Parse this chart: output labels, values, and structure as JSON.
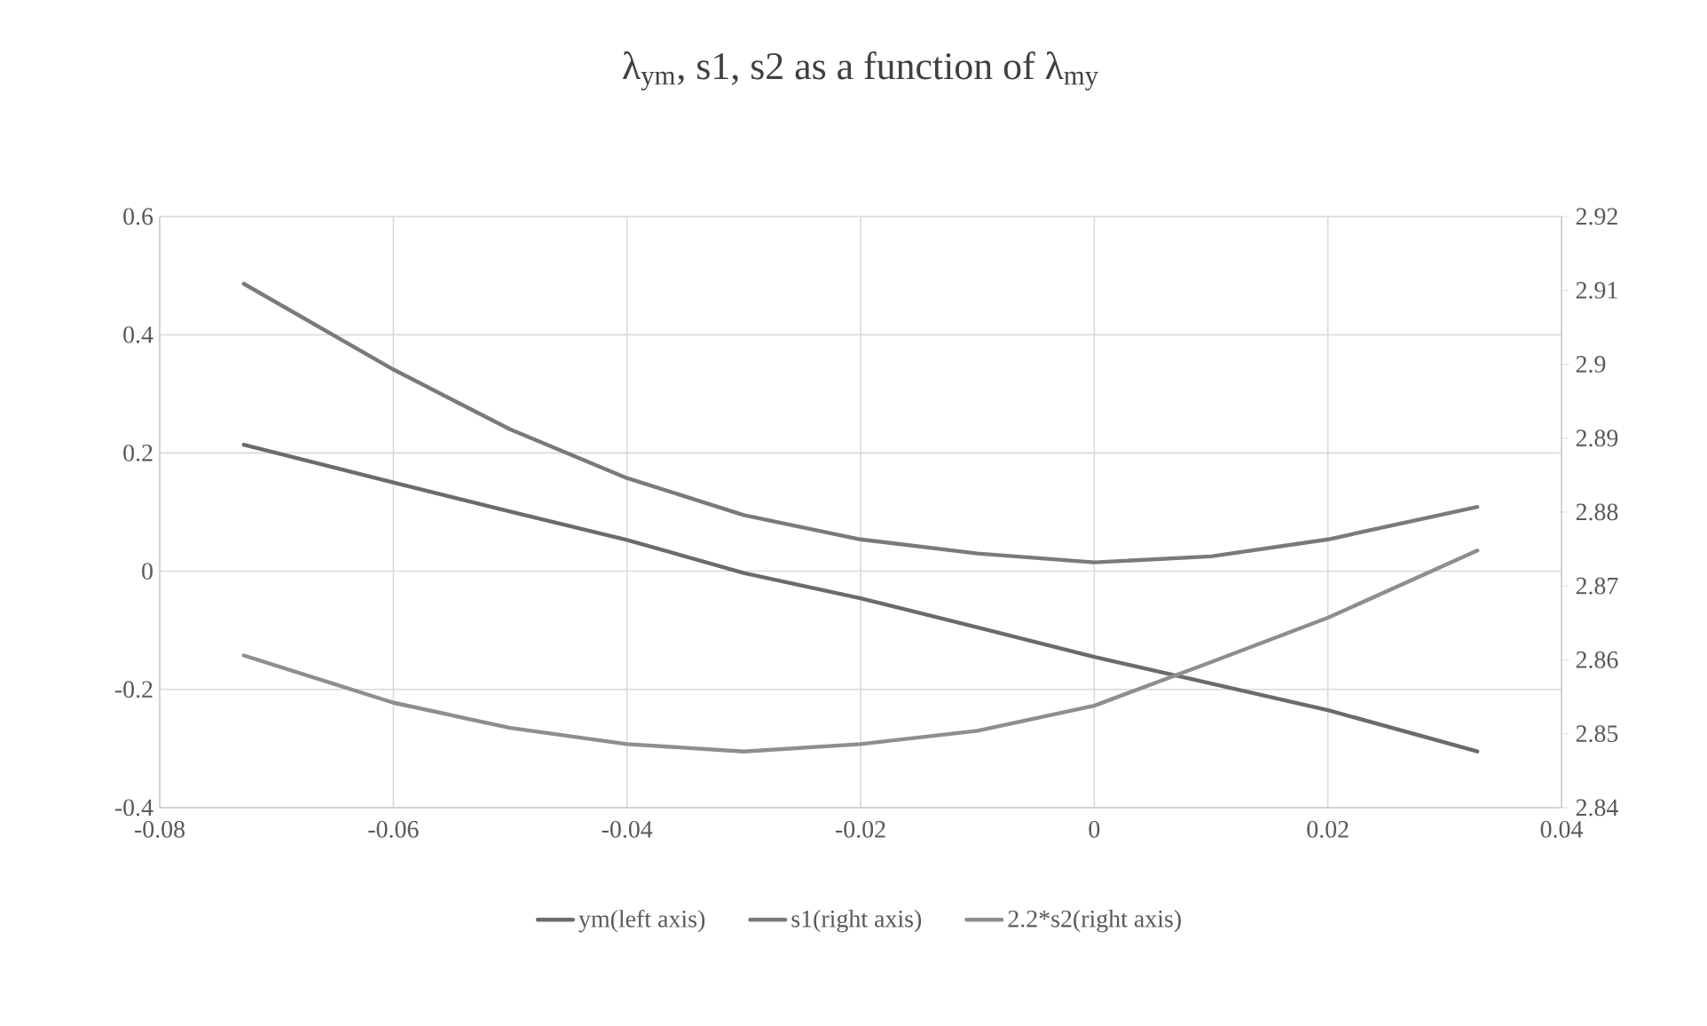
{
  "chart_data": {
    "type": "line",
    "title": "λ$_{ym}$, s1, s2 as a function of λ$_{my}$",
    "x": [
      -0.0728,
      -0.06,
      -0.05,
      -0.04,
      -0.03,
      -0.02,
      -0.01,
      0,
      0.01,
      0.02,
      0.0328
    ],
    "series": [
      {
        "name": "ym(left axis)",
        "color": "#6b6b6b",
        "values": [
          0.214,
          0.15,
          0.101,
          0.053,
          -0.003,
          -0.046,
          -0.095,
          -0.145,
          -0.19,
          -0.235,
          -0.305
        ]
      },
      {
        "name": "s1(right axis)",
        "color": "#7a7a7a",
        "axis": "y2",
        "values": [
          2.9109,
          2.8993,
          2.8912,
          2.8846,
          2.8796,
          2.8763,
          2.8744,
          2.8732,
          2.874,
          2.8763,
          2.8807
        ]
      },
      {
        "name": "2.2*s2(right axis)",
        "color": "#8e8e8e",
        "axis": "y2",
        "values": [
          2.8606,
          2.8542,
          2.8508,
          2.8486,
          2.8476,
          2.8486,
          2.8504,
          2.8538,
          2.8597,
          2.8657,
          2.8748
        ]
      }
    ],
    "xlim": [
      -0.08,
      0.04
    ],
    "xticks": [
      -0.08,
      -0.06,
      -0.04,
      -0.02,
      0,
      0.02,
      0.04
    ],
    "ylim": [
      -0.4,
      0.6
    ],
    "yticks": [
      -0.4,
      -0.2,
      0,
      0.2,
      0.4,
      0.6
    ],
    "y2lim": [
      2.84,
      2.92
    ],
    "y2ticks": [
      2.84,
      2.85,
      2.86,
      2.87,
      2.88,
      2.89,
      2.9,
      2.91,
      2.92
    ],
    "grid": true,
    "legend": "bottom",
    "line_style": "solid",
    "marker": "none"
  }
}
